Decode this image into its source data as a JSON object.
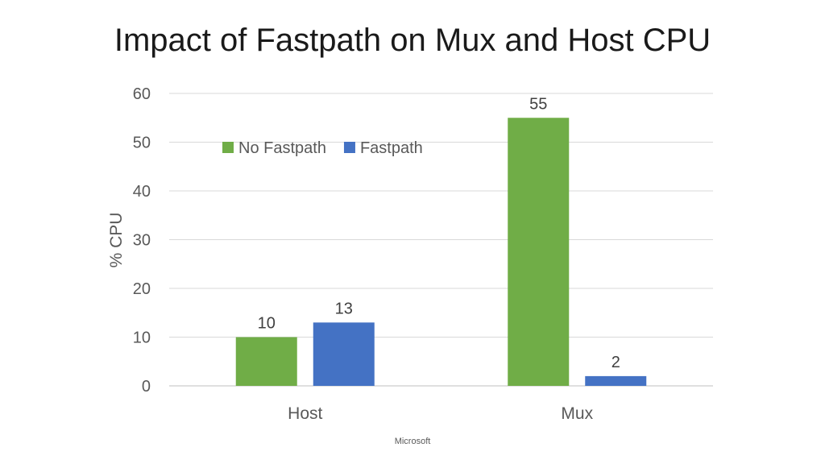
{
  "slide": {
    "title": "Impact of Fastpath on Mux and Host CPU",
    "footer": "Microsoft"
  },
  "chart_data": {
    "type": "bar",
    "title": "",
    "categories": [
      "Host",
      "Mux"
    ],
    "series": [
      {
        "name": "No Fastpath",
        "values": [
          10,
          55
        ],
        "color": "#70AD47"
      },
      {
        "name": "Fastpath",
        "values": [
          13,
          2
        ],
        "color": "#4472C4"
      }
    ],
    "xlabel": "",
    "ylabel": "% CPU",
    "ylim": [
      0,
      60
    ],
    "yticks": [
      0,
      10,
      20,
      30,
      40,
      50,
      60
    ],
    "grid": true,
    "legend": "top-left inside plot",
    "data_labels": true
  }
}
